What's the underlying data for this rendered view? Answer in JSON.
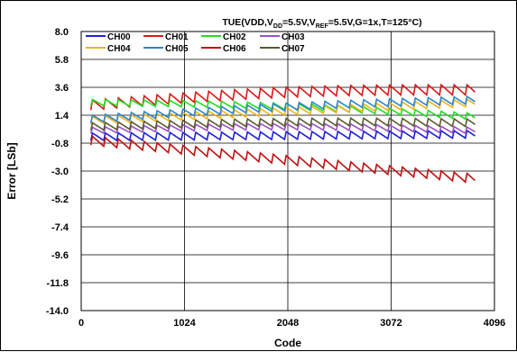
{
  "chart_data": {
    "type": "line",
    "title": {
      "prefix": "TUE(VDD,V",
      "sub1": "DD",
      "mid1": "=5.5V,V",
      "sub2": "REF",
      "suffix": "=5.5V,G=1x,T=125°C)"
    },
    "xlabel": "Code",
    "ylabel": "Error [LSb]",
    "xlim": [
      0,
      4096
    ],
    "ylim": [
      -14.0,
      8.0
    ],
    "xticks": [
      0,
      1024,
      2048,
      3072,
      4096
    ],
    "yticks": [
      "8.0",
      "5.8",
      "3.6",
      "1.4",
      "-0.8",
      "-3.0",
      "-5.2",
      "-7.4",
      "-9.6",
      "-11.8",
      "-14.0"
    ],
    "grid": true,
    "legend_position": "top-left",
    "sawtooth": {
      "period": 128,
      "x_start": 96,
      "x_end": 3910
    },
    "series": [
      {
        "name": "CH00",
        "color": "#1f1fd8",
        "start": -0.3,
        "end": -0.1,
        "bump": 0.6
      },
      {
        "name": "CH01",
        "color": "#d81818",
        "start": 2.2,
        "end": 3.4,
        "bump": 0.8,
        "hump": 0.4
      },
      {
        "name": "CH02",
        "color": "#22dd22",
        "start": 2.4,
        "end": 1.3,
        "bump": 0.5,
        "hump": 0.25
      },
      {
        "name": "CH03",
        "color": "#9b4fc4",
        "start": 0.2,
        "end": 0.2,
        "bump": 0.5,
        "hump": 0.3
      },
      {
        "name": "CH04",
        "color": "#f0b41a",
        "start": 1.0,
        "end": 2.4,
        "bump": 0.6
      },
      {
        "name": "CH05",
        "color": "#2a86c8",
        "start": 1.1,
        "end": 2.6,
        "bump": 0.6,
        "hump": 0.2
      },
      {
        "name": "CH06",
        "color": "#c01010",
        "start": -0.6,
        "end": -3.6,
        "bump": 0.7
      },
      {
        "name": "CH07",
        "color": "#5a5a30",
        "start": 0.5,
        "end": 0.8,
        "bump": 0.6,
        "hump": 0.2
      }
    ]
  }
}
